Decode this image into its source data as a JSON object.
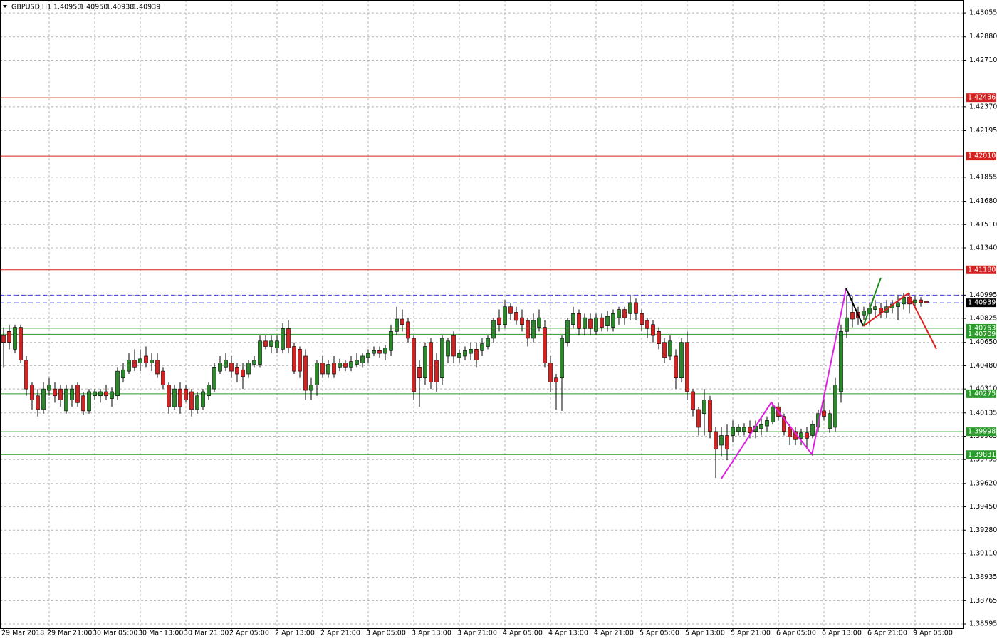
{
  "chart_data": {
    "type": "candlestick",
    "title": "GBPUSD,H1",
    "header_values": [
      "1.40950",
      "1.40950",
      "1.40938",
      "1.40939"
    ],
    "up_color": "#2a8a2a",
    "down_color": "#dc1e1e",
    "grid": true,
    "xlim": [
      -0.625,
      168.375
    ],
    "ylim": [
      1.38564,
      1.43149
    ],
    "xticks": [
      {
        "value": 0,
        "label": "29 Mar 2018"
      },
      {
        "value": 8,
        "label": "29 Mar 21:00"
      },
      {
        "value": 16,
        "label": "30 Mar 05:00"
      },
      {
        "value": 24,
        "label": "30 Mar 13:00"
      },
      {
        "value": 32,
        "label": "30 Mar 21:00"
      },
      {
        "value": 40,
        "label": "2 Apr 05:00"
      },
      {
        "value": 48,
        "label": "2 Apr 13:00"
      },
      {
        "value": 56,
        "label": "2 Apr 21:00"
      },
      {
        "value": 64,
        "label": "3 Apr 05:00"
      },
      {
        "value": 72,
        "label": "3 Apr 13:00"
      },
      {
        "value": 80,
        "label": "3 Apr 21:00"
      },
      {
        "value": 88,
        "label": "4 Apr 05:00"
      },
      {
        "value": 96,
        "label": "4 Apr 13:00"
      },
      {
        "value": 104,
        "label": "4 Apr 21:00"
      },
      {
        "value": 112,
        "label": "5 Apr 05:00"
      },
      {
        "value": 120,
        "label": "5 Apr 13:00"
      },
      {
        "value": 128,
        "label": "5 Apr 21:00"
      },
      {
        "value": 136,
        "label": "6 Apr 05:00"
      },
      {
        "value": 144,
        "label": "6 Apr 13:00"
      },
      {
        "value": 152,
        "label": "6 Apr 21:00"
      },
      {
        "value": 160,
        "label": "9 Apr 05:00"
      }
    ],
    "yticks": [
      1.43055,
      {
        "value": 1.4288,
        "label": "1.42880"
      },
      {
        "value": 1.4271,
        "label": "1.42710"
      },
      {
        "value": 1.4237,
        "label": "1.42370"
      },
      1.42195,
      1.41855,
      {
        "value": 1.4168,
        "label": "1.41680"
      },
      {
        "value": 1.4151,
        "label": "1.41510"
      },
      {
        "value": 1.4134,
        "label": "1.41340"
      },
      1.40995,
      1.40825,
      {
        "value": 1.4065,
        "label": "1.40650"
      },
      {
        "value": 1.4048,
        "label": "1.40480"
      },
      {
        "value": 1.4031,
        "label": "1.40310"
      },
      1.40135,
      1.39965,
      1.39795,
      {
        "value": 1.3962,
        "label": "1.39620"
      },
      {
        "value": 1.3945,
        "label": "1.39450"
      },
      {
        "value": 1.3928,
        "label": "1.39280"
      },
      {
        "value": 1.3911,
        "label": "1.39110"
      },
      1.38935,
      1.38765,
      1.38595
    ],
    "levels": [
      {
        "value": 1.42436,
        "color": "#d62020"
      },
      {
        "value": 1.4201,
        "label": "1.42010",
        "color": "#d62020"
      },
      {
        "value": 1.4118,
        "label": "1.41180",
        "color": "#d62020"
      },
      {
        "value": 1.40995,
        "color": "#4040e0",
        "dashed": true,
        "no_label": true
      },
      {
        "value": 1.40939,
        "color": "#4040e0",
        "label_color": "#000000",
        "dashed": true
      },
      {
        "value": 1.40753,
        "color": "#2a9a2a"
      },
      {
        "value": 1.40709,
        "color": "#2a9a2a"
      },
      {
        "value": 1.40275,
        "color": "#2a9a2a"
      },
      {
        "value": 1.39998,
        "color": "#2a9a2a"
      },
      {
        "value": 1.39831,
        "color": "#2a9a2a"
      }
    ],
    "drawings": [
      {
        "color": "#e020e0",
        "x": [
          126,
          134.75,
          141.9,
          147.9
        ],
        "y": [
          1.39656,
          1.40212,
          1.39833,
          1.41044
        ]
      },
      {
        "color": "#000000",
        "x": [
          147.9,
          150.9
        ],
        "y": [
          1.41044,
          1.40768
        ]
      },
      {
        "color": "#1a8a1a",
        "x": [
          150.9,
          154
        ],
        "y": [
          1.40768,
          1.41122
        ]
      },
      {
        "color": "#e02020",
        "x": [
          150.9,
          158.75,
          163.75
        ],
        "y": [
          1.40768,
          1.41007,
          1.40602
        ]
      }
    ],
    "candles": [
      [
        1.407,
        1.4076,
        1.4047,
        1.4065
      ],
      [
        1.4073,
        1.4078,
        1.406,
        1.4065
      ],
      [
        1.406,
        1.4078,
        1.4057,
        1.4076
      ],
      [
        1.4076,
        1.4078,
        1.405,
        1.4052
      ],
      [
        1.4052,
        1.4055,
        1.4026,
        1.4031
      ],
      [
        1.4034,
        1.4036,
        1.4016,
        1.4023
      ],
      [
        1.4026,
        1.4031,
        1.4011,
        1.4016
      ],
      [
        1.4016,
        1.4036,
        1.4013,
        1.4031
      ],
      [
        1.403,
        1.4039,
        1.4026,
        1.4034
      ],
      [
        1.4031,
        1.4036,
        1.4021,
        1.4026
      ],
      [
        1.4031,
        1.4034,
        1.4018,
        1.4023
      ],
      [
        1.4015,
        1.4034,
        1.4013,
        1.4031
      ],
      [
        1.4023,
        1.4034,
        1.4018,
        1.4031
      ],
      [
        1.4034,
        1.4036,
        1.4018,
        1.4021
      ],
      [
        1.4026,
        1.4029,
        1.4012,
        1.4015
      ],
      [
        1.4015,
        1.4031,
        1.4013,
        1.4029
      ],
      [
        1.4026,
        1.4031,
        1.4023,
        1.4029
      ],
      [
        1.4026,
        1.4031,
        1.4021,
        1.4029
      ],
      [
        1.4029,
        1.4034,
        1.4023,
        1.4026
      ],
      [
        1.4024,
        1.4032,
        1.4018,
        1.4029
      ],
      [
        1.4026,
        1.4047,
        1.4023,
        1.4044
      ],
      [
        1.4039,
        1.405,
        1.4036,
        1.4045
      ],
      [
        1.4044,
        1.4057,
        1.4042,
        1.4052
      ],
      [
        1.4052,
        1.406,
        1.4044,
        1.4047
      ],
      [
        1.405,
        1.406,
        1.4044,
        1.4053
      ],
      [
        1.4055,
        1.4062,
        1.4047,
        1.405
      ],
      [
        1.405,
        1.4057,
        1.4044,
        1.4052
      ],
      [
        1.4052,
        1.4057,
        1.4039,
        1.4042
      ],
      [
        1.4044,
        1.4047,
        1.4031,
        1.4034
      ],
      [
        1.4034,
        1.4036,
        1.4013,
        1.4018
      ],
      [
        1.4018,
        1.4034,
        1.4016,
        1.4031
      ],
      [
        1.4031,
        1.4036,
        1.4013,
        1.4018
      ],
      [
        1.4031,
        1.4034,
        1.4021,
        1.4023
      ],
      [
        1.4029,
        1.4031,
        1.4011,
        1.4016
      ],
      [
        1.4016,
        1.4029,
        1.4013,
        1.4026
      ],
      [
        1.4018,
        1.4031,
        1.4016,
        1.4029
      ],
      [
        1.4026,
        1.4036,
        1.4023,
        1.4034
      ],
      [
        1.4031,
        1.405,
        1.4029,
        1.4047
      ],
      [
        1.4044,
        1.4055,
        1.4042,
        1.405
      ],
      [
        1.4047,
        1.4057,
        1.4044,
        1.4052
      ],
      [
        1.405,
        1.4055,
        1.4039,
        1.4044
      ],
      [
        1.4047,
        1.405,
        1.4036,
        1.4042
      ],
      [
        1.4045,
        1.405,
        1.4031,
        1.404
      ],
      [
        1.4042,
        1.4052,
        1.4039,
        1.405
      ],
      [
        1.4049,
        1.4055,
        1.4047,
        1.4052
      ],
      [
        1.4049,
        1.407,
        1.4047,
        1.4066
      ],
      [
        1.4066,
        1.407,
        1.406,
        1.4062
      ],
      [
        1.4062,
        1.407,
        1.4057,
        1.4066
      ],
      [
        1.4061,
        1.407,
        1.4057,
        1.4066
      ],
      [
        1.406,
        1.4079,
        1.4057,
        1.4075
      ],
      [
        1.4075,
        1.4081,
        1.4057,
        1.4061
      ],
      [
        1.4062,
        1.4065,
        1.4042,
        1.4044
      ],
      [
        1.406,
        1.4062,
        1.4039,
        1.4044
      ],
      [
        1.4055,
        1.406,
        1.4023,
        1.403
      ],
      [
        1.403,
        1.4039,
        1.4023,
        1.4034
      ],
      [
        1.4034,
        1.4052,
        1.4026,
        1.405
      ],
      [
        1.405,
        1.4055,
        1.4039,
        1.4042
      ],
      [
        1.4042,
        1.4052,
        1.4039,
        1.4049
      ],
      [
        1.405,
        1.4055,
        1.4039,
        1.4042
      ],
      [
        1.4047,
        1.4053,
        1.4044,
        1.405
      ],
      [
        1.405,
        1.4052,
        1.4044,
        1.4047
      ],
      [
        1.4047,
        1.4055,
        1.4044,
        1.4051
      ],
      [
        1.4049,
        1.4057,
        1.4047,
        1.4052
      ],
      [
        1.405,
        1.4057,
        1.4047,
        1.4055
      ],
      [
        1.4054,
        1.406,
        1.405,
        1.4057
      ],
      [
        1.4057,
        1.4062,
        1.4055,
        1.4059
      ],
      [
        1.4059,
        1.4062,
        1.4054,
        1.4057
      ],
      [
        1.4057,
        1.4063,
        1.4052,
        1.4061
      ],
      [
        1.4059,
        1.4078,
        1.4055,
        1.4073
      ],
      [
        1.4073,
        1.4091,
        1.407,
        1.4082
      ],
      [
        1.4082,
        1.4089,
        1.4073,
        1.4078
      ],
      [
        1.408,
        1.4083,
        1.4065,
        1.4068
      ],
      [
        1.4068,
        1.407,
        1.4023,
        1.4029
      ],
      [
        1.4047,
        1.4052,
        1.4018,
        1.4039
      ],
      [
        1.4039,
        1.4065,
        1.4034,
        1.4062
      ],
      [
        1.4065,
        1.4068,
        1.4031,
        1.4036
      ],
      [
        1.4052,
        1.4057,
        1.4029,
        1.4036
      ],
      [
        1.4039,
        1.407,
        1.4034,
        1.4068
      ],
      [
        1.4055,
        1.4068,
        1.405,
        1.4066
      ],
      [
        1.407,
        1.4073,
        1.405,
        1.4055
      ],
      [
        1.4054,
        1.406,
        1.405,
        1.4057
      ],
      [
        1.4055,
        1.4062,
        1.4052,
        1.4059
      ],
      [
        1.4057,
        1.4065,
        1.4052,
        1.406
      ],
      [
        1.406,
        1.4065,
        1.4047,
        1.4052
      ],
      [
        1.4059,
        1.4068,
        1.4055,
        1.4064
      ],
      [
        1.4062,
        1.407,
        1.406,
        1.4068
      ],
      [
        1.4068,
        1.4083,
        1.4065,
        1.4081
      ],
      [
        1.4083,
        1.4089,
        1.4073,
        1.4078
      ],
      [
        1.4078,
        1.4096,
        1.4075,
        1.4091
      ],
      [
        1.4091,
        1.4094,
        1.4081,
        1.4086
      ],
      [
        1.4087,
        1.4091,
        1.4078,
        1.4081
      ],
      [
        1.4083,
        1.4089,
        1.4073,
        1.4078
      ],
      [
        1.4081,
        1.4083,
        1.4062,
        1.4068
      ],
      [
        1.4068,
        1.4086,
        1.4065,
        1.4081
      ],
      [
        1.4076,
        1.4089,
        1.4073,
        1.4083
      ],
      [
        1.4076,
        1.4081,
        1.4047,
        1.405
      ],
      [
        1.405,
        1.4055,
        1.4029,
        1.4036
      ],
      [
        1.4039,
        1.4042,
        1.4016,
        1.4036
      ],
      [
        1.4039,
        1.407,
        1.4015,
        1.4068
      ],
      [
        1.4065,
        1.4083,
        1.4062,
        1.4081
      ],
      [
        1.4078,
        1.4091,
        1.4075,
        1.4086
      ],
      [
        1.4086,
        1.4089,
        1.407,
        1.4075
      ],
      [
        1.4075,
        1.4086,
        1.407,
        1.4083
      ],
      [
        1.4082,
        1.4086,
        1.407,
        1.4075
      ],
      [
        1.4073,
        1.4086,
        1.407,
        1.4083
      ],
      [
        1.4083,
        1.4086,
        1.4073,
        1.4076
      ],
      [
        1.4077,
        1.4088,
        1.4073,
        1.4084
      ],
      [
        1.4076,
        1.4089,
        1.4073,
        1.4086
      ],
      [
        1.4083,
        1.4091,
        1.4078,
        1.4089
      ],
      [
        1.4089,
        1.4091,
        1.4078,
        1.4083
      ],
      [
        1.4086,
        1.4099,
        1.4081,
        1.4094
      ],
      [
        1.4094,
        1.4097,
        1.4081,
        1.4086
      ],
      [
        1.4086,
        1.4089,
        1.4073,
        1.4078
      ],
      [
        1.4081,
        1.4083,
        1.4068,
        1.4075
      ],
      [
        1.4078,
        1.4081,
        1.4065,
        1.407
      ],
      [
        1.4073,
        1.4076,
        1.406,
        1.4064
      ],
      [
        1.4065,
        1.4068,
        1.405,
        1.4054
      ],
      [
        1.4055,
        1.407,
        1.4052,
        1.4066
      ],
      [
        1.4055,
        1.406,
        1.4031,
        1.4039
      ],
      [
        1.4039,
        1.4068,
        1.4036,
        1.4065
      ],
      [
        1.4065,
        1.4073,
        1.4023,
        1.4029
      ],
      [
        1.4029,
        1.4031,
        1.4011,
        1.4016
      ],
      [
        1.4016,
        1.4018,
        1.3997,
        1.4003
      ],
      [
        1.4013,
        1.4031,
        1.3997,
        1.4023
      ],
      [
        1.4023,
        1.4026,
        1.3995,
        1.4
      ],
      [
        1.4,
        1.4003,
        1.3966,
        1.3987
      ],
      [
        1.399,
        1.4003,
        1.3982,
        1.3997
      ],
      [
        1.3997,
        1.4005,
        1.3979,
        1.3987
      ],
      [
        1.3997,
        1.4008,
        1.3992,
        1.4003
      ],
      [
        1.4,
        1.4005,
        1.3997,
        1.4003
      ],
      [
        1.4,
        1.4006,
        1.3997,
        1.4003
      ],
      [
        1.4003,
        1.4008,
        1.3995,
        1.3999
      ],
      [
        1.4,
        1.4008,
        1.3995,
        1.4004
      ],
      [
        1.4002,
        1.401,
        1.3997,
        1.4005
      ],
      [
        1.4004,
        1.4011,
        1.4,
        1.4008
      ],
      [
        1.4007,
        1.4021,
        1.4005,
        1.4018
      ],
      [
        1.4018,
        1.4021,
        1.4008,
        1.4011
      ],
      [
        1.4011,
        1.4013,
        1.3997,
        1.4
      ],
      [
        1.4003,
        1.4005,
        1.399,
        1.3996
      ],
      [
        1.4,
        1.4003,
        1.399,
        1.3994
      ],
      [
        1.3995,
        1.4002,
        1.399,
        1.3999
      ],
      [
        1.3999,
        1.4003,
        1.3987,
        1.3995
      ],
      [
        1.3997,
        1.4008,
        1.3995,
        1.4005
      ],
      [
        1.4003,
        1.4016,
        1.4,
        1.4013
      ],
      [
        1.4015,
        1.4026,
        1.4008,
        1.4011
      ],
      [
        1.4002,
        1.4016,
        1.3999,
        1.4013
      ],
      [
        1.4003,
        1.4039,
        1.4,
        1.4034
      ],
      [
        1.4029,
        1.4078,
        1.4021,
        1.4073
      ],
      [
        1.4073,
        1.4099,
        1.4068,
        1.4083
      ],
      [
        1.4087,
        1.4099,
        1.4076,
        1.4082
      ],
      [
        1.4087,
        1.4091,
        1.4078,
        1.4083
      ],
      [
        1.4085,
        1.4091,
        1.4081,
        1.4088
      ],
      [
        1.4086,
        1.4094,
        1.4078,
        1.409
      ],
      [
        1.4089,
        1.4096,
        1.4083,
        1.4091
      ],
      [
        1.409,
        1.4094,
        1.4083,
        1.4087
      ],
      [
        1.4087,
        1.4096,
        1.4083,
        1.4091
      ],
      [
        1.409,
        1.4096,
        1.4086,
        1.4093
      ],
      [
        1.4091,
        1.4099,
        1.4081,
        1.4094
      ],
      [
        1.4093,
        1.4101,
        1.4089,
        1.4098
      ],
      [
        1.4098,
        1.4101,
        1.4086,
        1.4093
      ],
      [
        1.4094,
        1.4099,
        1.4091,
        1.4096
      ],
      [
        1.4096,
        1.4098,
        1.4091,
        1.4094
      ],
      [
        1.4095,
        1.4095,
        1.40938,
        1.40939
      ]
    ]
  }
}
